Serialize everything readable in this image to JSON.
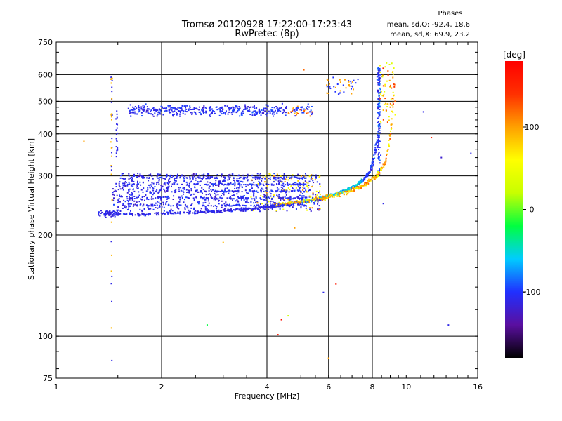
{
  "chart_data": {
    "type": "scatter",
    "title": "Tromsø 20120928 17:22:00-17:23:43",
    "subtitle": "RwPretec (8p)",
    "xlabel": "Frequency [MHz]",
    "ylabel": "Stationary phase Virtual Height [km]",
    "x_scale": "log2",
    "y_scale": "log",
    "xlim": [
      1,
      16
    ],
    "ylim": [
      75,
      750
    ],
    "x_ticks": [
      1,
      2,
      4,
      6,
      8,
      10,
      16
    ],
    "x_gridlines": [
      2,
      4,
      6,
      8
    ],
    "y_ticks": [
      75,
      100,
      200,
      300,
      400,
      500,
      600,
      750
    ],
    "y_gridlines": [
      100,
      200,
      300,
      400,
      500,
      600
    ],
    "grid": true,
    "stats_header": "Phases",
    "stats": [
      "mean, sd,O: -92.4, 18.6",
      "mean, sd,X:  69.9, 23.2"
    ],
    "colorbar": {
      "label": "[deg]",
      "range": [
        -180,
        180
      ],
      "ticks": [
        100,
        0,
        -100
      ],
      "colors": [
        "#000000",
        "#5a0fa0",
        "#2030ff",
        "#00ccff",
        "#00ff40",
        "#c8ff00",
        "#ffff00",
        "#ffa000",
        "#ff3000",
        "#ff0000"
      ]
    },
    "series": [],
    "traces": [
      {
        "note_id": "F2 O-mode trace",
        "x": [
          1.4,
          1.55,
          1.7,
          1.9,
          2.1,
          2.4,
          2.8,
          3.2,
          3.7,
          4.2,
          4.7,
          5.2,
          5.7,
          6.1,
          6.5,
          6.9,
          7.3,
          7.6,
          7.9,
          8.1,
          8.3,
          8.4,
          8.5
        ],
        "y": [
          232,
          231,
          230,
          231,
          232,
          233,
          235,
          237,
          240,
          244,
          248,
          252,
          257,
          262,
          268,
          275,
          284,
          295,
          310,
          340,
          390,
          470,
          600
        ],
        "phase": -100
      },
      {
        "note_id": "F2 X-mode trace",
        "x": [
          4.2,
          4.8,
          5.3,
          5.8,
          6.4,
          7.0,
          7.6,
          8.2,
          8.6,
          8.8,
          8.9,
          9.0,
          9.1,
          9.15,
          9.2
        ],
        "y": [
          247,
          250,
          253,
          258,
          264,
          272,
          282,
          298,
          320,
          345,
          370,
          400,
          440,
          480,
          530
        ],
        "phase": 80
      },
      {
        "note_id": "spread band",
        "x": [
          1.45,
          5.7
        ],
        "y": [
          235,
          305
        ],
        "phase": -90
      },
      {
        "note_id": "upper band",
        "x": [
          1.6,
          5.4
        ],
        "y": [
          460,
          520
        ],
        "phase": -95
      }
    ]
  }
}
